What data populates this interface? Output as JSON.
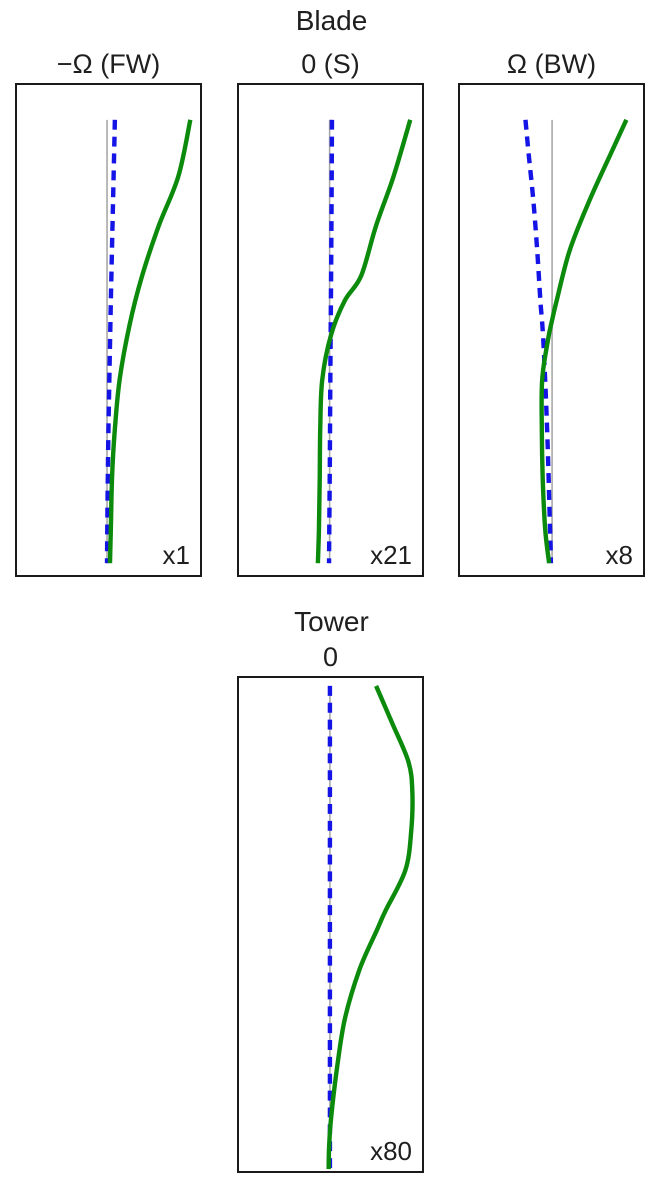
{
  "colors": {
    "solid_line": "#0c8a0c",
    "dashed_line": "#1414e6",
    "reference_line": "#a6a6a6",
    "frame": "#1a1a1a",
    "text": "#1f1f1f",
    "background": "#ffffff"
  },
  "chart_data": {
    "type": "line",
    "groups": [
      {
        "title": "Blade",
        "panel_ids": [
          "blade-neg-omega-fw",
          "blade-0-s",
          "blade-omega-bw"
        ]
      },
      {
        "title": "Tower",
        "panel_ids": [
          "tower-0"
        ]
      }
    ],
    "axes": {
      "ticks_visible": false,
      "tick_labels": [],
      "coordinates": "normalized: x = lateral deflection across panel (0-1), y = height from top (0-1)"
    },
    "legend": {
      "visible": false
    },
    "panels": [
      {
        "id": "blade-neg-omega-fw",
        "group": "Blade",
        "title": "−Ω (FW)",
        "scale_label": "x1",
        "series": {
          "reference": {
            "x": 0.492,
            "y_top": 0.071,
            "y_bottom": 0.976
          },
          "dashed": [
            [
              0.535,
              0.071
            ],
            [
              0.524,
              0.25
            ],
            [
              0.513,
              0.44
            ],
            [
              0.503,
              0.63
            ],
            [
              0.496,
              0.8
            ],
            [
              0.492,
              0.976
            ]
          ],
          "solid": [
            [
              0.947,
              0.071
            ],
            [
              0.882,
              0.186
            ],
            [
              0.775,
              0.287
            ],
            [
              0.684,
              0.389
            ],
            [
              0.615,
              0.49
            ],
            [
              0.561,
              0.601
            ],
            [
              0.535,
              0.702
            ],
            [
              0.519,
              0.803
            ],
            [
              0.513,
              0.905
            ],
            [
              0.508,
              0.976
            ]
          ]
        }
      },
      {
        "id": "blade-0-s",
        "group": "Blade",
        "title": "0 (S)",
        "scale_label": "x21",
        "series": {
          "reference": {
            "x": 0.495,
            "y_top": 0.071,
            "y_bottom": 0.976
          },
          "dashed": [
            [
              0.508,
              0.071
            ],
            [
              0.505,
              0.3
            ],
            [
              0.5,
              0.55
            ],
            [
              0.496,
              0.78
            ],
            [
              0.492,
              0.976
            ]
          ],
          "solid": [
            [
              0.936,
              0.071
            ],
            [
              0.845,
              0.186
            ],
            [
              0.749,
              0.287
            ],
            [
              0.668,
              0.389
            ],
            [
              0.578,
              0.44
            ],
            [
              0.503,
              0.51
            ],
            [
              0.455,
              0.601
            ],
            [
              0.444,
              0.702
            ],
            [
              0.441,
              0.803
            ],
            [
              0.437,
              0.905
            ],
            [
              0.431,
              0.976
            ]
          ]
        }
      },
      {
        "id": "blade-omega-bw",
        "group": "Blade",
        "title": "Ω (BW)",
        "scale_label": "x8",
        "series": {
          "reference": {
            "x": 0.503,
            "y_top": 0.071,
            "y_bottom": 0.976
          },
          "dashed": [
            [
              0.358,
              0.071
            ],
            [
              0.374,
              0.136
            ],
            [
              0.401,
              0.237
            ],
            [
              0.422,
              0.338
            ],
            [
              0.439,
              0.439
            ],
            [
              0.455,
              0.52
            ],
            [
              0.476,
              0.702
            ],
            [
              0.492,
              0.905
            ],
            [
              0.497,
              0.976
            ]
          ],
          "solid": [
            [
              0.909,
              0.071
            ],
            [
              0.829,
              0.136
            ],
            [
              0.706,
              0.237
            ],
            [
              0.599,
              0.338
            ],
            [
              0.529,
              0.439
            ],
            [
              0.503,
              0.48
            ],
            [
              0.481,
              0.52
            ],
            [
              0.449,
              0.601
            ],
            [
              0.447,
              0.702
            ],
            [
              0.452,
              0.803
            ],
            [
              0.465,
              0.905
            ],
            [
              0.487,
              0.976
            ]
          ]
        }
      },
      {
        "id": "tower-0",
        "group": "Tower",
        "title": "0",
        "scale_label": "x80",
        "series": {
          "reference": {
            "x": 0.497,
            "y_top": 0.016,
            "y_bottom": 0.996
          },
          "dashed": [
            [
              0.497,
              0.016
            ],
            [
              0.497,
              0.996
            ]
          ],
          "solid": [
            [
              0.749,
              0.016
            ],
            [
              0.834,
              0.089
            ],
            [
              0.925,
              0.169
            ],
            [
              0.947,
              0.229
            ],
            [
              0.941,
              0.31
            ],
            [
              0.909,
              0.39
            ],
            [
              0.802,
              0.471
            ],
            [
              0.754,
              0.511
            ],
            [
              0.658,
              0.592
            ],
            [
              0.578,
              0.692
            ],
            [
              0.535,
              0.793
            ],
            [
              0.503,
              0.893
            ],
            [
              0.492,
              0.954
            ],
            [
              0.49,
              0.996
            ]
          ]
        }
      }
    ]
  }
}
